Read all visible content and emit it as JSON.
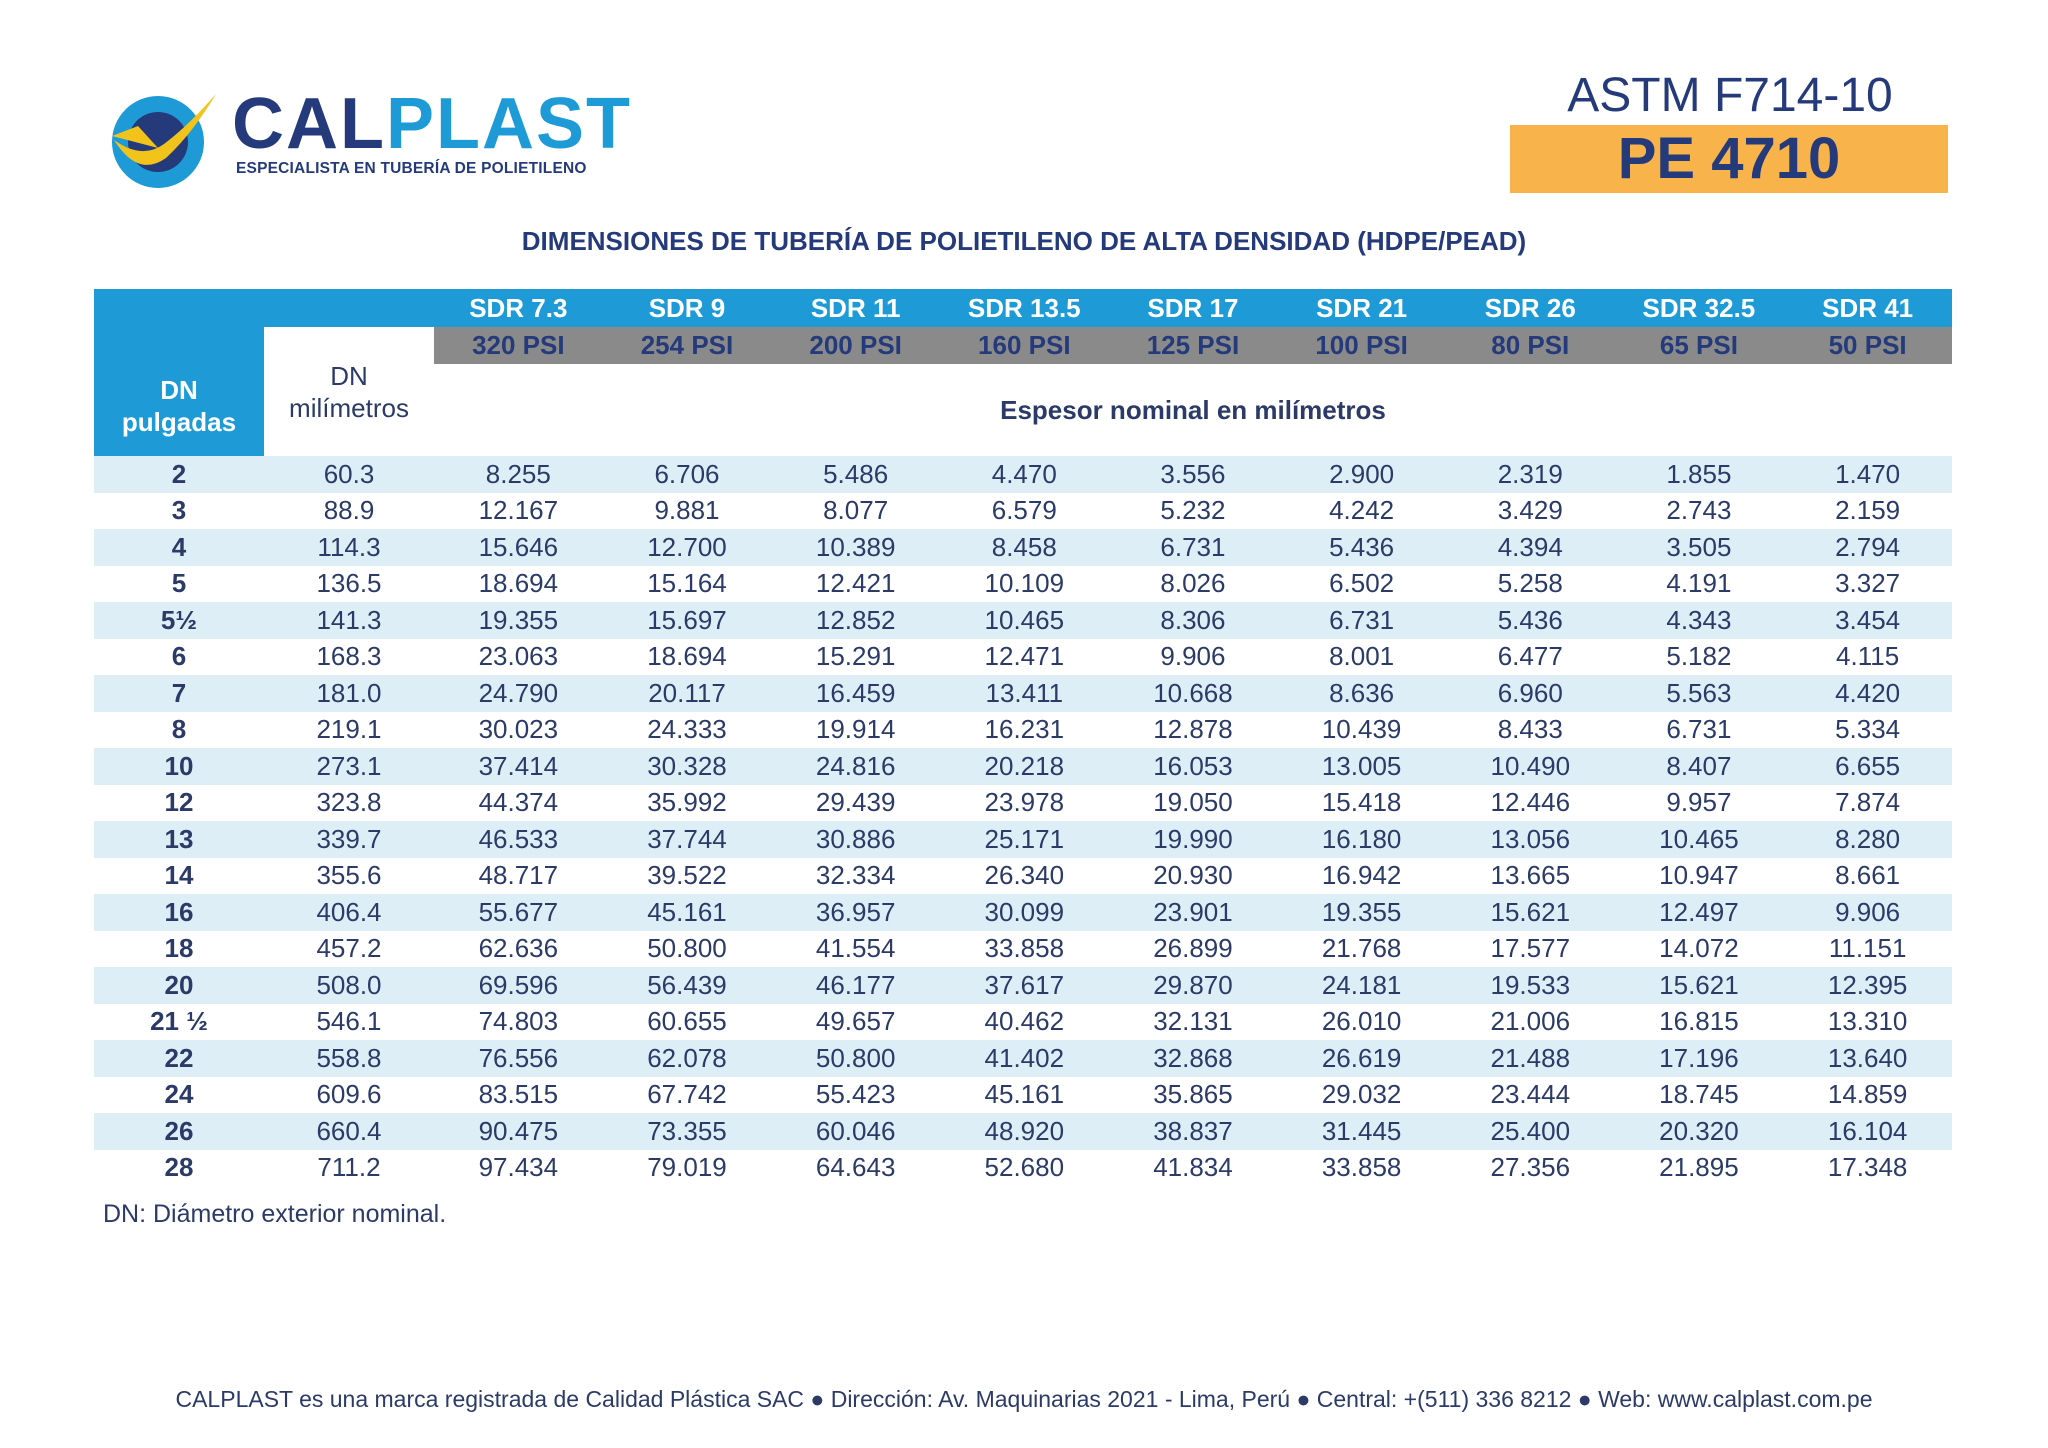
{
  "logo": {
    "brand_a": "CAL",
    "brand_b": "PLAST",
    "tagline": "ESPECIALISTA EN TUBERÍA DE POLIETILENO"
  },
  "standard": "ASTM F714-10",
  "material": "PE 4710",
  "title": "DIMENSIONES DE TUBERÍA DE POLIETILENO DE ALTA DENSIDAD (HDPE/PEAD)",
  "table": {
    "dn_inches_label": [
      "DN",
      "pulgadas"
    ],
    "dn_mm_label": [
      "DN",
      "milímetros"
    ],
    "thickness_label": "Espesor nominal en milímetros",
    "sdr": [
      "SDR 7.3",
      "SDR 9",
      "SDR 11",
      "SDR 13.5",
      "SDR 17",
      "SDR 21",
      "SDR 26",
      "SDR 32.5",
      "SDR 41"
    ],
    "psi": [
      "320 PSI",
      "254 PSI",
      "200 PSI",
      "160 PSI",
      "125 PSI",
      "100 PSI",
      "80 PSI",
      "65 PSI",
      "50 PSI"
    ],
    "rows": [
      [
        "2",
        "60.3",
        "8.255",
        "6.706",
        "5.486",
        "4.470",
        "3.556",
        "2.900",
        "2.319",
        "1.855",
        "1.470"
      ],
      [
        "3",
        "88.9",
        "12.167",
        "9.881",
        "8.077",
        "6.579",
        "5.232",
        "4.242",
        "3.429",
        "2.743",
        "2.159"
      ],
      [
        "4",
        "114.3",
        "15.646",
        "12.700",
        "10.389",
        "8.458",
        "6.731",
        "5.436",
        "4.394",
        "3.505",
        "2.794"
      ],
      [
        "5",
        "136.5",
        "18.694",
        "15.164",
        "12.421",
        "10.109",
        "8.026",
        "6.502",
        "5.258",
        "4.191",
        "3.327"
      ],
      [
        "5½",
        "141.3",
        "19.355",
        "15.697",
        "12.852",
        "10.465",
        "8.306",
        "6.731",
        "5.436",
        "4.343",
        "3.454"
      ],
      [
        "6",
        "168.3",
        "23.063",
        "18.694",
        "15.291",
        "12.471",
        "9.906",
        "8.001",
        "6.477",
        "5.182",
        "4.115"
      ],
      [
        "7",
        "181.0",
        "24.790",
        "20.117",
        "16.459",
        "13.411",
        "10.668",
        "8.636",
        "6.960",
        "5.563",
        "4.420"
      ],
      [
        "8",
        "219.1",
        "30.023",
        "24.333",
        "19.914",
        "16.231",
        "12.878",
        "10.439",
        "8.433",
        "6.731",
        "5.334"
      ],
      [
        "10",
        "273.1",
        "37.414",
        "30.328",
        "24.816",
        "20.218",
        "16.053",
        "13.005",
        "10.490",
        "8.407",
        "6.655"
      ],
      [
        "12",
        "323.8",
        "44.374",
        "35.992",
        "29.439",
        "23.978",
        "19.050",
        "15.418",
        "12.446",
        "9.957",
        "7.874"
      ],
      [
        "13",
        "339.7",
        "46.533",
        "37.744",
        "30.886",
        "25.171",
        "19.990",
        "16.180",
        "13.056",
        "10.465",
        "8.280"
      ],
      [
        "14",
        "355.6",
        "48.717",
        "39.522",
        "32.334",
        "26.340",
        "20.930",
        "16.942",
        "13.665",
        "10.947",
        "8.661"
      ],
      [
        "16",
        "406.4",
        "55.677",
        "45.161",
        "36.957",
        "30.099",
        "23.901",
        "19.355",
        "15.621",
        "12.497",
        "9.906"
      ],
      [
        "18",
        "457.2",
        "62.636",
        "50.800",
        "41.554",
        "33.858",
        "26.899",
        "21.768",
        "17.577",
        "14.072",
        "11.151"
      ],
      [
        "20",
        "508.0",
        "69.596",
        "56.439",
        "46.177",
        "37.617",
        "29.870",
        "24.181",
        "19.533",
        "15.621",
        "12.395"
      ],
      [
        "21 ½",
        "546.1",
        "74.803",
        "60.655",
        "49.657",
        "40.462",
        "32.131",
        "26.010",
        "21.006",
        "16.815",
        "13.310"
      ],
      [
        "22",
        "558.8",
        "76.556",
        "62.078",
        "50.800",
        "41.402",
        "32.868",
        "26.619",
        "21.488",
        "17.196",
        "13.640"
      ],
      [
        "24",
        "609.6",
        "83.515",
        "67.742",
        "55.423",
        "45.161",
        "35.865",
        "29.032",
        "23.444",
        "18.745",
        "14.859"
      ],
      [
        "26",
        "660.4",
        "90.475",
        "73.355",
        "60.046",
        "48.920",
        "38.837",
        "31.445",
        "25.400",
        "20.320",
        "16.104"
      ],
      [
        "28",
        "711.2",
        "97.434",
        "79.019",
        "64.643",
        "52.680",
        "41.834",
        "33.858",
        "27.356",
        "21.895",
        "17.348"
      ]
    ]
  },
  "note": "DN: Diámetro exterior nominal.",
  "footer": "CALPLAST es una marca registrada de Calidad Plástica SAC ● Dirección: Av. Maquinarias 2021 - Lima, Perú ● Central: +(511) 336 8212 ● Web: www.calplast.com.pe",
  "colors": {
    "blue": "#1e9bd7",
    "navy": "#253a7a",
    "orange": "#f8b34a",
    "gray": "#8a8a8a",
    "row_shade": "#deeef7",
    "logo_yellow": "#f2c31a"
  }
}
